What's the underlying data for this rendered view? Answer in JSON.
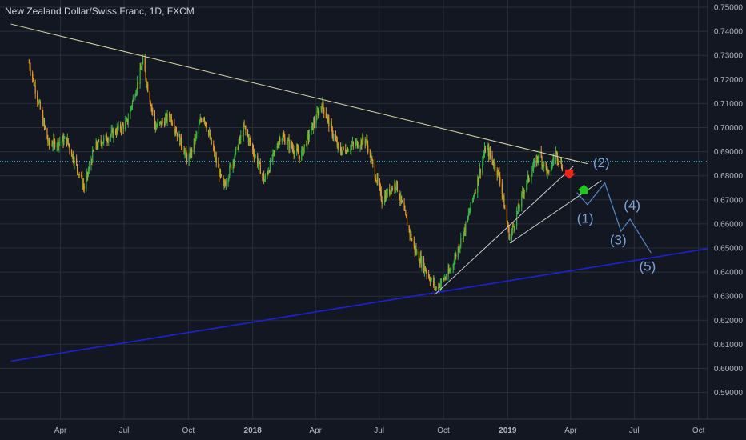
{
  "header": {
    "symbol_title": "New Zealand Dollar/Swiss Franc, 1D, FXCM"
  },
  "colors": {
    "background": "#131722",
    "grid": "#2a2e39",
    "candle_up": "#3cb043",
    "candle_down": "#e09a2e",
    "upper_trendline": "#d8d8a8",
    "lower_channel": "#1f1fd6",
    "triangle_lines": "#cfcfcf",
    "wave_path": "#5b87c7",
    "current_price_line": "#26c6da",
    "signal_up": "#21c521",
    "signal_down": "#e8291c"
  },
  "price_axis": {
    "labels": [
      "0.75000",
      "0.74000",
      "0.73000",
      "0.72000",
      "0.71000",
      "0.70000",
      "0.69000",
      "0.68000",
      "0.67000",
      "0.66000",
      "0.65000",
      "0.64000",
      "0.63000",
      "0.62000",
      "0.61000",
      "0.60000",
      "0.59000"
    ]
  },
  "time_axis": {
    "labels": [
      "Apr",
      "Jul",
      "Oct",
      "2018",
      "Apr",
      "Jul",
      "Oct",
      "2019",
      "Apr",
      "Jul",
      "Oct"
    ]
  },
  "wave_labels": [
    "(1)",
    "(2)",
    "(3)",
    "(4)",
    "(5)"
  ],
  "chart_data": {
    "type": "candlestick",
    "title": "New Zealand Dollar/Swiss Franc, 1D, FXCM",
    "x_range": [
      "2017-02-15",
      "2019-10-20"
    ],
    "y_range": [
      0.581,
      0.753
    ],
    "path_points": [
      [
        "2017-02-15",
        0.727
      ],
      [
        "2017-03-15",
        0.693
      ],
      [
        "2017-04-10",
        0.695
      ],
      [
        "2017-05-05",
        0.675
      ],
      [
        "2017-05-20",
        0.692
      ],
      [
        "2017-07-05",
        0.702
      ],
      [
        "2017-07-28",
        0.727
      ],
      [
        "2017-08-15",
        0.7
      ],
      [
        "2017-09-05",
        0.705
      ],
      [
        "2017-10-01",
        0.686
      ],
      [
        "2017-10-22",
        0.706
      ],
      [
        "2017-11-20",
        0.675
      ],
      [
        "2017-12-20",
        0.7
      ],
      [
        "2018-01-18",
        0.678
      ],
      [
        "2018-02-10",
        0.697
      ],
      [
        "2018-03-10",
        0.688
      ],
      [
        "2018-04-10",
        0.71
      ],
      [
        "2018-05-05",
        0.69
      ],
      [
        "2018-06-12",
        0.695
      ],
      [
        "2018-07-05",
        0.67
      ],
      [
        "2018-07-25",
        0.677
      ],
      [
        "2018-08-20",
        0.65
      ],
      [
        "2018-09-20",
        0.633
      ],
      [
        "2018-10-10",
        0.64
      ],
      [
        "2018-11-01",
        0.658
      ],
      [
        "2018-12-01",
        0.692
      ],
      [
        "2018-12-20",
        0.68
      ],
      [
        "2019-01-04",
        0.654
      ],
      [
        "2019-01-25",
        0.675
      ],
      [
        "2019-02-15",
        0.689
      ],
      [
        "2019-03-01",
        0.68
      ],
      [
        "2019-03-10",
        0.69
      ],
      [
        "2019-03-20",
        0.684
      ]
    ],
    "current_price": 0.686,
    "upper_trendline": [
      [
        "2017-01-20",
        0.743
      ],
      [
        "2019-04-25",
        0.685
      ]
    ],
    "lower_channel": [
      [
        "2017-01-20",
        0.603
      ],
      [
        "2019-10-20",
        0.65
      ]
    ],
    "triangle_lower": [
      [
        "2018-09-20",
        0.631
      ],
      [
        "2019-04-05",
        0.684
      ]
    ],
    "triangle_inner": [
      [
        "2019-01-04",
        0.652
      ],
      [
        "2019-05-15",
        0.678
      ]
    ],
    "wave_projection": [
      [
        "2019-04-10",
        0.673
      ],
      [
        "2019-04-25",
        0.668
      ],
      [
        "2019-05-20",
        0.677
      ],
      [
        "2019-06-12",
        0.657
      ],
      [
        "2019-06-25",
        0.662
      ],
      [
        "2019-07-25",
        0.648
      ]
    ],
    "signals": [
      {
        "type": "down-arrow",
        "date": "2019-03-30",
        "price": 0.68
      },
      {
        "type": "up-arrow",
        "date": "2019-04-20",
        "price": 0.675
      }
    ]
  }
}
